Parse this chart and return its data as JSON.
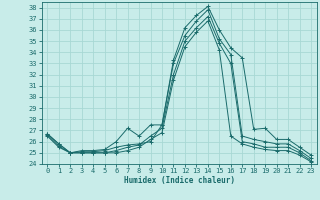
{
  "title": "",
  "xlabel": "Humidex (Indice chaleur)",
  "xlim": [
    -0.5,
    23.5
  ],
  "ylim": [
    24,
    38.5
  ],
  "yticks": [
    24,
    25,
    26,
    27,
    28,
    29,
    30,
    31,
    32,
    33,
    34,
    35,
    36,
    37,
    38
  ],
  "xticks": [
    0,
    1,
    2,
    3,
    4,
    5,
    6,
    7,
    8,
    9,
    10,
    11,
    12,
    13,
    14,
    15,
    16,
    17,
    18,
    19,
    20,
    21,
    22,
    23
  ],
  "bg_color": "#c8ece9",
  "grid_color": "#a8d8d4",
  "line_color": "#1a6b6b",
  "lines": [
    [
      26.7,
      25.8,
      25.0,
      25.2,
      25.2,
      25.3,
      26.0,
      27.2,
      26.5,
      27.5,
      27.5,
      33.3,
      36.2,
      37.3,
      38.1,
      36.0,
      34.4,
      33.5,
      27.1,
      27.2,
      26.2,
      26.2,
      25.5,
      24.8
    ],
    [
      26.7,
      25.8,
      25.0,
      25.1,
      25.1,
      25.2,
      25.5,
      25.7,
      25.8,
      26.0,
      27.5,
      33.0,
      35.5,
      36.8,
      37.8,
      35.2,
      33.8,
      26.5,
      26.2,
      26.0,
      25.8,
      25.8,
      25.2,
      24.5
    ],
    [
      26.6,
      25.6,
      25.0,
      25.0,
      25.0,
      25.0,
      25.2,
      25.5,
      25.7,
      26.5,
      27.2,
      32.0,
      35.0,
      36.2,
      37.2,
      34.8,
      33.0,
      26.0,
      25.8,
      25.5,
      25.5,
      25.5,
      25.0,
      24.3
    ],
    [
      26.5,
      25.5,
      25.0,
      25.0,
      25.0,
      25.0,
      25.0,
      25.2,
      25.5,
      26.2,
      26.8,
      31.5,
      34.5,
      35.8,
      36.8,
      34.2,
      26.5,
      25.8,
      25.5,
      25.3,
      25.2,
      25.2,
      24.8,
      24.2
    ]
  ]
}
